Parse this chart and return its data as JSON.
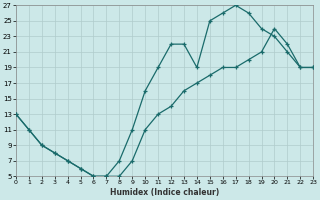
{
  "xlabel": "Humidex (Indice chaleur)",
  "bg_color": "#cce8e8",
  "grid_color": "#b0cccc",
  "line_color": "#1a6b6b",
  "xlim": [
    0,
    23
  ],
  "ylim": [
    5,
    27
  ],
  "xticks": [
    0,
    1,
    2,
    3,
    4,
    5,
    6,
    7,
    8,
    9,
    10,
    11,
    12,
    13,
    14,
    15,
    16,
    17,
    18,
    19,
    20,
    21,
    22,
    23
  ],
  "yticks": [
    5,
    7,
    9,
    11,
    13,
    15,
    17,
    19,
    21,
    23,
    25,
    27
  ],
  "line1_x": [
    0,
    1,
    2,
    3,
    4,
    5,
    6,
    7,
    8,
    9,
    10,
    11,
    12,
    13,
    14,
    15,
    16,
    17,
    18,
    19,
    20,
    21,
    22,
    23
  ],
  "line1_y": [
    13,
    11,
    9,
    8,
    7,
    6,
    5,
    5,
    7,
    11,
    16,
    19,
    22,
    22,
    19,
    25,
    26,
    27,
    26,
    24,
    23,
    21,
    19,
    19
  ],
  "line2_x": [
    0,
    1,
    2,
    3,
    4,
    5,
    6,
    7,
    8,
    9,
    10,
    11,
    12,
    13,
    14,
    15,
    16,
    17,
    18,
    19,
    20,
    21,
    22,
    23
  ],
  "line2_y": [
    13,
    11,
    9,
    8,
    7,
    6,
    5,
    5,
    5,
    7,
    11,
    13,
    14,
    16,
    17,
    18,
    19,
    19,
    20,
    21,
    24,
    22,
    19,
    19
  ]
}
